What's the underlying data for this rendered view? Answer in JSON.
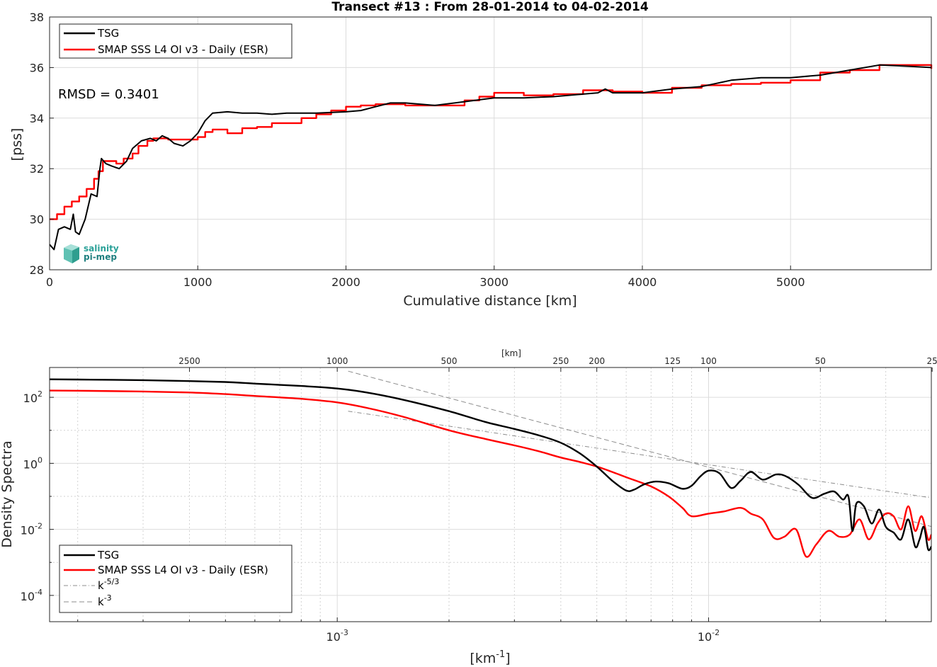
{
  "colors": {
    "tsg": "#000000",
    "smap": "#ff0000",
    "ref": "#8c8c8c",
    "logo": "#2aa198"
  },
  "logo": {
    "line1": "salinity",
    "line2": "pi-mep",
    "icon": "salinity-pi-mep-logo"
  },
  "chart_data": [
    {
      "type": "line",
      "title": "Transect #13 : From 28-01-2014 to 04-02-2014",
      "xlabel": "Cumulative distance [km]",
      "ylabel": "[pss]",
      "xlim": [
        0,
        5950
      ],
      "ylim": [
        28,
        38
      ],
      "grid": true,
      "legend": "top-left",
      "annotation": "RMSD = 0.3401",
      "xticks": [
        0,
        1000,
        2000,
        3000,
        4000,
        5000
      ],
      "yticks": [
        28,
        30,
        32,
        34,
        36,
        38
      ],
      "series": [
        {
          "name": "TSG",
          "color": "#000000",
          "x": [
            0,
            30,
            60,
            100,
            140,
            160,
            175,
            200,
            240,
            280,
            320,
            340,
            350,
            380,
            420,
            470,
            520,
            560,
            620,
            680,
            720,
            760,
            800,
            840,
            900,
            950,
            1000,
            1050,
            1100,
            1200,
            1300,
            1400,
            1500,
            1600,
            1800,
            2000,
            2100,
            2200,
            2300,
            2400,
            2600,
            2800,
            3000,
            3200,
            3400,
            3600,
            3700,
            3750,
            3800,
            4000,
            4200,
            4400,
            4600,
            4800,
            5000,
            5200,
            5400,
            5600,
            5800,
            5950
          ],
          "y": [
            29.0,
            28.8,
            29.6,
            29.7,
            29.6,
            30.2,
            29.5,
            29.4,
            30.0,
            31.0,
            30.9,
            32.0,
            32.4,
            32.2,
            32.1,
            32.0,
            32.3,
            32.8,
            33.1,
            33.2,
            33.1,
            33.3,
            33.2,
            33.0,
            32.9,
            33.1,
            33.4,
            33.9,
            34.2,
            34.25,
            34.2,
            34.2,
            34.15,
            34.2,
            34.2,
            34.25,
            34.3,
            34.45,
            34.6,
            34.6,
            34.5,
            34.65,
            34.8,
            34.8,
            34.85,
            34.95,
            35.0,
            35.15,
            35.0,
            35.0,
            35.15,
            35.25,
            35.5,
            35.6,
            35.6,
            35.7,
            35.9,
            36.1,
            36.05,
            36.0
          ]
        },
        {
          "name": "SMAP SSS L4 OI v3 - Daily (ESR)",
          "color": "#ff0000",
          "x": [
            0,
            50,
            100,
            150,
            200,
            250,
            300,
            330,
            360,
            400,
            450,
            500,
            560,
            600,
            660,
            700,
            800,
            900,
            1000,
            1050,
            1100,
            1200,
            1300,
            1400,
            1500,
            1600,
            1700,
            1800,
            1900,
            2000,
            2100,
            2200,
            2400,
            2600,
            2800,
            2900,
            3000,
            3100,
            3200,
            3400,
            3600,
            3800,
            4000,
            4200,
            4400,
            4600,
            4800,
            5000,
            5200,
            5400,
            5600,
            5800,
            5950
          ],
          "y": [
            30.0,
            30.2,
            30.5,
            30.7,
            30.9,
            31.2,
            31.6,
            31.9,
            32.3,
            32.3,
            32.2,
            32.4,
            32.6,
            32.9,
            33.1,
            33.2,
            33.15,
            33.15,
            33.25,
            33.45,
            33.55,
            33.4,
            33.6,
            33.65,
            33.8,
            33.8,
            34.0,
            34.15,
            34.3,
            34.45,
            34.5,
            34.55,
            34.5,
            34.5,
            34.7,
            34.85,
            35.0,
            35.0,
            34.9,
            34.95,
            35.1,
            35.05,
            35.0,
            35.2,
            35.3,
            35.35,
            35.4,
            35.5,
            35.8,
            35.9,
            36.1,
            36.1,
            35.95
          ]
        }
      ]
    },
    {
      "type": "line",
      "xlabel": "[km⁻¹]",
      "ylabel": "Density Spectra",
      "xscale": "log",
      "yscale": "log",
      "xlim": [
        0.000168,
        0.0398
      ],
      "ylim": [
        1.6e-05,
        800
      ],
      "xticks_labels": [
        "10",
        "10"
      ],
      "xticks_exponents": [
        "-3",
        "-2"
      ],
      "yticks_labels": [
        "10",
        "10",
        "10",
        "10"
      ],
      "yticks_exponents": [
        "2",
        "0",
        "-2",
        "-4"
      ],
      "top_axis_label": "[km]",
      "top_axis_ticks": [
        "2500",
        "1000",
        "500",
        "250",
        "200",
        "125",
        "100",
        "50",
        "25"
      ],
      "grid": true,
      "legend": "bottom-left",
      "series": [
        {
          "name": "TSG",
          "color": "#000000",
          "k": [
            0.000168,
            0.0002,
            0.0003,
            0.0004,
            0.0005,
            0.0006,
            0.0008,
            0.001,
            0.0012,
            0.0015,
            0.002,
            0.0025,
            0.003,
            0.0035,
            0.004,
            0.0045,
            0.005,
            0.0055,
            0.006,
            0.0063,
            0.0067,
            0.0072,
            0.0078,
            0.0085,
            0.009,
            0.0095,
            0.01,
            0.0107,
            0.0115,
            0.0122,
            0.013,
            0.014,
            0.0152,
            0.0162,
            0.0175,
            0.019,
            0.0205,
            0.0218,
            0.023,
            0.0238,
            0.0244,
            0.025,
            0.0262,
            0.0275,
            0.0288,
            0.03,
            0.0315,
            0.033,
            0.0345,
            0.036,
            0.037,
            0.038,
            0.039,
            0.0398
          ],
          "v": [
            350,
            345,
            330,
            310,
            290,
            260,
            220,
            185,
            140,
            85,
            38,
            18,
            11,
            7,
            4.2,
            2.0,
            0.8,
            0.3,
            0.15,
            0.16,
            0.23,
            0.28,
            0.25,
            0.17,
            0.21,
            0.4,
            0.6,
            0.5,
            0.18,
            0.3,
            0.55,
            0.32,
            0.46,
            0.4,
            0.22,
            0.09,
            0.12,
            0.14,
            0.08,
            0.1,
            0.009,
            0.06,
            0.05,
            0.015,
            0.04,
            0.012,
            0.008,
            0.005,
            0.02,
            0.003,
            0.005,
            0.012,
            0.0025,
            0.003
          ]
        },
        {
          "name": "SMAP SSS L4 OI v3 - Daily (ESR)",
          "color": "#ff0000",
          "k": [
            0.000168,
            0.0002,
            0.0003,
            0.0004,
            0.0005,
            0.0006,
            0.0008,
            0.001,
            0.0012,
            0.0015,
            0.002,
            0.0025,
            0.003,
            0.0035,
            0.004,
            0.0045,
            0.005,
            0.0055,
            0.006,
            0.007,
            0.0078,
            0.0085,
            0.009,
            0.01,
            0.011,
            0.0122,
            0.013,
            0.014,
            0.015,
            0.016,
            0.0172,
            0.0183,
            0.0195,
            0.021,
            0.0225,
            0.024,
            0.0255,
            0.027,
            0.0285,
            0.03,
            0.0315,
            0.033,
            0.0345,
            0.036,
            0.0375,
            0.039,
            0.0398
          ],
          "v": [
            160,
            158,
            150,
            140,
            125,
            110,
            90,
            70,
            48,
            26,
            10,
            5.5,
            3.5,
            2.3,
            1.5,
            1.1,
            0.8,
            0.55,
            0.38,
            0.2,
            0.1,
            0.045,
            0.025,
            0.03,
            0.035,
            0.045,
            0.03,
            0.02,
            0.0055,
            0.006,
            0.01,
            0.0015,
            0.0035,
            0.009,
            0.006,
            0.007,
            0.02,
            0.005,
            0.015,
            0.03,
            0.025,
            0.01,
            0.05,
            0.009,
            0.025,
            0.005,
            0.007
          ]
        },
        {
          "name": "k⁻⁵ᐟ³",
          "color": "#8c8c8c",
          "k": [
            0.00107,
            0.0398
          ],
          "v": [
            38,
            0.09
          ]
        },
        {
          "name": "k⁻³",
          "color": "#8c8c8c",
          "k": [
            0.00107,
            0.0398
          ],
          "v": [
            620,
            0.0122
          ]
        }
      ]
    }
  ],
  "legend_top": [
    "TSG",
    "SMAP SSS L4 OI v3 - Daily (ESR)"
  ],
  "legend_bottom": [
    "TSG",
    "SMAP SSS L4 OI v3 - Daily (ESR)",
    "k",
    "k"
  ],
  "legend_bottom_exp": [
    "",
    "",
    "-5/3",
    "-3"
  ]
}
